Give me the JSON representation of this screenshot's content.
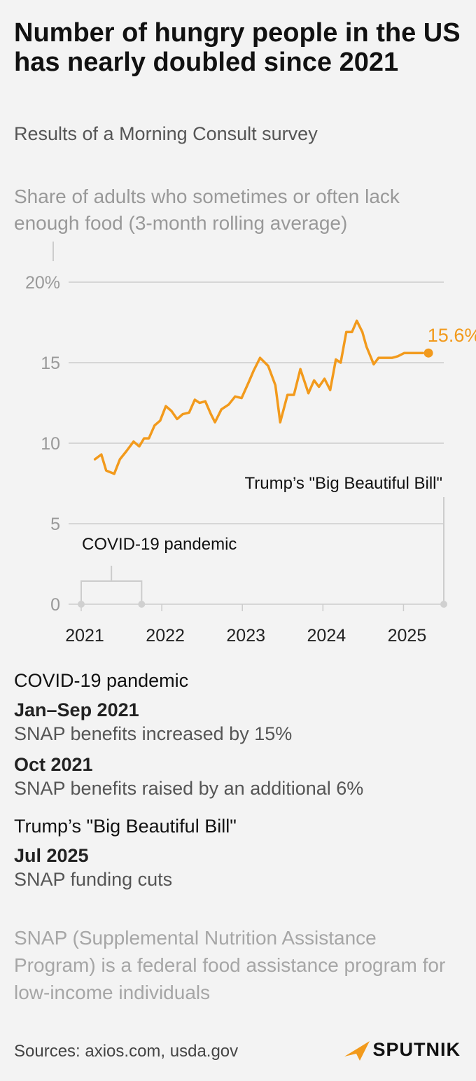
{
  "header": {
    "title": "Number of hungry people in the US has nearly doubled since 2021",
    "subtitle": "Results of a Morning Consult survey",
    "ylabel": "Share of adults who sometimes or often lack enough food (3-month rolling average)"
  },
  "chart_data": {
    "type": "line",
    "y_ticks": [
      "0",
      "5",
      "10",
      "15",
      "20%"
    ],
    "y_tick_values": [
      0,
      5,
      10,
      15,
      20
    ],
    "ylim": [
      0,
      20
    ],
    "x_ticks": [
      "2021",
      "2022",
      "2023",
      "2024",
      "2025"
    ],
    "x_tick_values": [
      2021,
      2022,
      2023,
      2024,
      2025
    ],
    "xlim": [
      2021,
      2025.5
    ],
    "series": [
      {
        "name": "Share of adults who sometimes or often lack enough food",
        "color": "#f29a1c",
        "x": [
          2021.17,
          2021.25,
          2021.31,
          2021.41,
          2021.48,
          2021.56,
          2021.65,
          2021.72,
          2021.78,
          2021.84,
          2021.91,
          2021.98,
          2022.05,
          2022.12,
          2022.19,
          2022.26,
          2022.34,
          2022.41,
          2022.47,
          2022.54,
          2022.61,
          2022.66,
          2022.74,
          2022.83,
          2022.91,
          2022.99,
          2023.08,
          2023.14,
          2023.22,
          2023.32,
          2023.41,
          2023.47,
          2023.56,
          2023.64,
          2023.72,
          2023.82,
          2023.89,
          2023.95,
          2024.02,
          2024.09,
          2024.16,
          2024.22,
          2024.29,
          2024.36,
          2024.42,
          2024.49,
          2024.54,
          2024.63,
          2024.69,
          2024.76,
          2024.86,
          2024.93,
          2025.01,
          2025.08,
          2025.14,
          2025.19,
          2025.24
        ],
        "values": [
          9.0,
          9.3,
          8.3,
          8.1,
          9.0,
          9.5,
          10.1,
          9.8,
          10.3,
          10.3,
          11.1,
          11.4,
          12.3,
          12.0,
          11.5,
          11.8,
          11.9,
          12.7,
          12.5,
          12.6,
          11.8,
          11.3,
          12.1,
          12.4,
          12.9,
          12.8,
          13.8,
          14.5,
          15.3,
          14.8,
          13.6,
          11.3,
          13.0,
          13.0,
          14.6,
          13.1,
          13.9,
          13.5,
          14.0,
          13.3,
          15.2,
          15.0,
          16.9,
          16.9,
          17.6,
          16.9,
          16.0,
          14.9,
          15.3,
          15.3,
          15.3,
          15.4,
          15.6,
          15.6,
          15.6,
          15.6,
          15.6
        ]
      }
    ],
    "end_label": "15.6%",
    "annotations": [
      {
        "id": "covid",
        "label": "COVID-19 pandemic",
        "x_start": 2021.0,
        "x_end": 2021.75
      },
      {
        "id": "bbb",
        "label": "Trump’s \"Big Beautiful Bill\"",
        "x": 2025.5
      }
    ]
  },
  "notes": {
    "covid_title": "COVID-19 pandemic",
    "covid_date1": "Jan–Sep 2021",
    "covid_text1": "SNAP benefits increased by 15%",
    "covid_date2": "Oct 2021",
    "covid_text2": "SNAP benefits raised by an additional 6%",
    "bbb_title": "Trump’s \"Big Beautiful Bill\"",
    "bbb_date": "Jul 2025",
    "bbb_text": "SNAP funding cuts"
  },
  "footnote": "SNAP (Supplemental Nutrition Assistance Program) is a federal food assistance program for low-income individuals",
  "footer": {
    "sources": "Sources: axios.com, usda.gov",
    "logo": "SPUTNIK"
  },
  "colors": {
    "accent": "#f29a1c",
    "grid": "#cccccc",
    "muted": "#999999"
  }
}
